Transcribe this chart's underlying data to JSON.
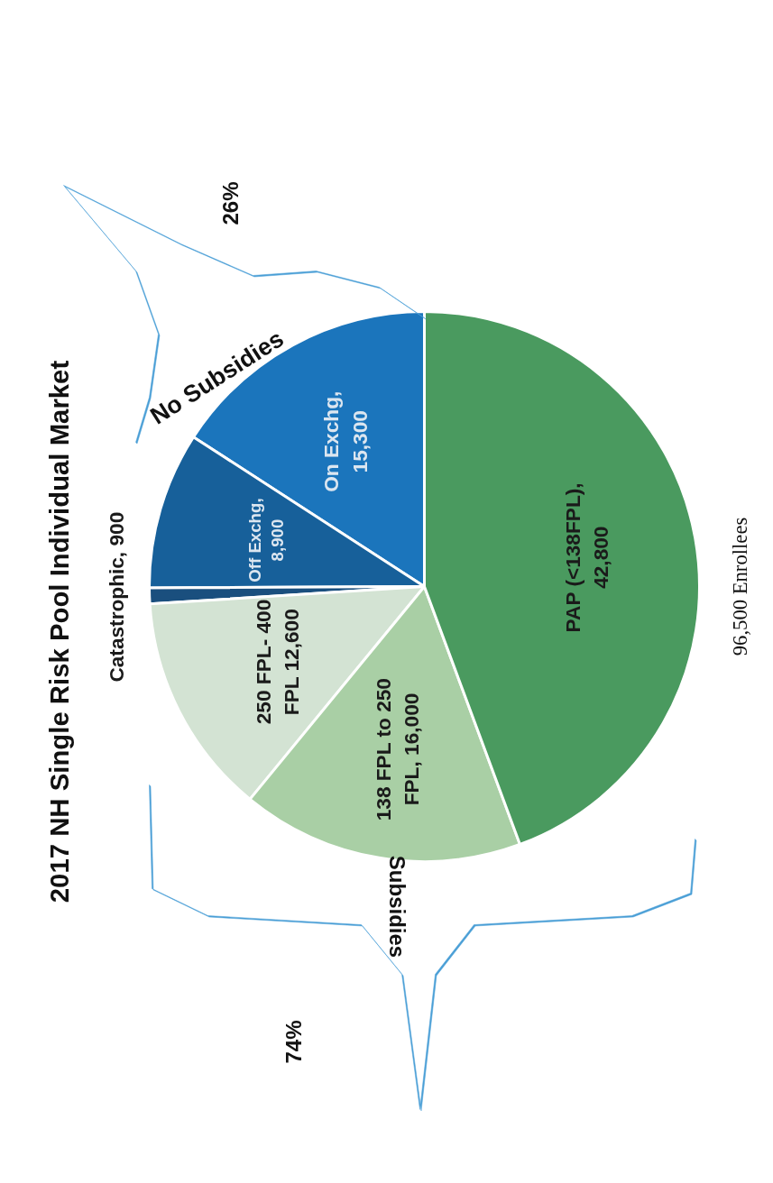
{
  "chart_data": {
    "type": "pie",
    "title": "2017 NH Single Risk Pool Individual Market",
    "categories": [
      "On Exchg, 15,300",
      "Off Exchg, 8,900",
      "Catastrophic, 900",
      "250 FPL- 400 FPL 12,600",
      "138 FPL to 250 FPL, 16,000",
      "PAP (<138FPL), 42,800"
    ],
    "values": [
      15300,
      8900,
      900,
      12600,
      16000,
      42800
    ],
    "colors": [
      "#1b75bc",
      "#17609a",
      "#1a4f7e",
      "#d3e3d3",
      "#a9cfa5",
      "#4a9a5f"
    ],
    "annotations": [
      "No Subsidies",
      "26%",
      "Subsidies",
      "74%",
      "96,500 Enrollees"
    ]
  }
}
